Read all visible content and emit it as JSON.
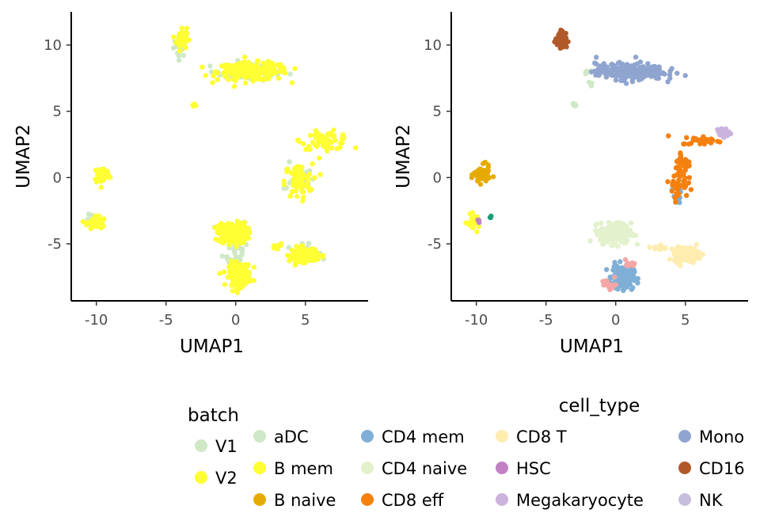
{
  "chart_data": [
    {
      "type": "scatter",
      "xlabel": "UMAP1",
      "ylabel": "UMAP2",
      "xlim": [
        -11.8,
        9.5
      ],
      "ylim": [
        -9.3,
        12.5
      ],
      "xticks": [
        -10,
        -5,
        0,
        5
      ],
      "yticks": [
        -5,
        0,
        5,
        10
      ],
      "grid": false,
      "legend": {
        "title": "batch",
        "position": "bottom",
        "entries": [
          {
            "label": "V1",
            "color": "#cfe8c6"
          },
          {
            "label": "V2",
            "color": "#ffff33"
          }
        ]
      },
      "series": [
        {
          "name": "V1",
          "color": "#cfe8c6",
          "clusters": [
            {
              "cx": -4.0,
              "cy": 10.0,
              "sx": 0.4,
              "sy": 0.8,
              "n": 25
            },
            {
              "cx": 1.0,
              "cy": 8.0,
              "sx": 2.5,
              "sy": 0.6,
              "n": 60
            },
            {
              "cx": -10.3,
              "cy": -3.4,
              "sx": 0.6,
              "sy": 0.6,
              "n": 12
            },
            {
              "cx": 4.5,
              "cy": 0.0,
              "sx": 1.0,
              "sy": 1.0,
              "n": 25
            },
            {
              "cx": 0.0,
              "cy": -5.0,
              "sx": 0.8,
              "sy": 2.0,
              "n": 60
            },
            {
              "cx": 4.8,
              "cy": -5.6,
              "sx": 1.0,
              "sy": 0.5,
              "n": 25
            }
          ]
        },
        {
          "name": "V2",
          "color": "#ffff33",
          "clusters": [
            {
              "cx": -3.9,
              "cy": 10.5,
              "sx": 0.35,
              "sy": 0.8,
              "n": 45
            },
            {
              "cx": 1.2,
              "cy": 8.0,
              "sx": 2.3,
              "sy": 0.6,
              "n": 220
            },
            {
              "cx": -3.0,
              "cy": 5.5,
              "sx": 0.15,
              "sy": 0.15,
              "n": 6
            },
            {
              "cx": 6.5,
              "cy": 2.8,
              "sx": 1.6,
              "sy": 0.6,
              "n": 60
            },
            {
              "cx": 4.5,
              "cy": -0.3,
              "sx": 0.9,
              "sy": 1.2,
              "n": 70
            },
            {
              "cx": -9.6,
              "cy": 0.2,
              "sx": 0.5,
              "sy": 0.6,
              "n": 60
            },
            {
              "cx": -10.0,
              "cy": -3.4,
              "sx": 0.6,
              "sy": 0.5,
              "n": 35
            },
            {
              "cx": -0.2,
              "cy": -4.2,
              "sx": 0.9,
              "sy": 0.7,
              "n": 230
            },
            {
              "cx": 0.3,
              "cy": -7.3,
              "sx": 0.7,
              "sy": 0.8,
              "n": 160
            },
            {
              "cx": 4.9,
              "cy": -5.8,
              "sx": 0.9,
              "sy": 0.5,
              "n": 130
            },
            {
              "cx": 3.0,
              "cy": -5.2,
              "sx": 0.4,
              "sy": 0.15,
              "n": 12
            }
          ]
        }
      ]
    },
    {
      "type": "scatter",
      "xlabel": "UMAP1",
      "ylabel": "UMAP2",
      "xlim": [
        -11.8,
        9.5
      ],
      "ylim": [
        -9.3,
        12.5
      ],
      "xticks": [
        -10,
        -5,
        0,
        5
      ],
      "yticks": [
        -5,
        0,
        5,
        10
      ],
      "grid": false,
      "legend": {
        "title": "cell_type",
        "position": "bottom",
        "entries": [
          {
            "label": "aDC",
            "color": "#cfe8c6"
          },
          {
            "label": "B mem",
            "color": "#ffff33"
          },
          {
            "label": "B naive",
            "color": "#e6ab02"
          },
          {
            "label": "CD4 mem",
            "color": "#7fafd6"
          },
          {
            "label": "CD4 naive",
            "color": "#e3f1cc"
          },
          {
            "label": "CD8 eff",
            "color": "#f5800e"
          },
          {
            "label": "CD8 T",
            "color": "#feedaf"
          },
          {
            "label": "HSC",
            "color": "#c181c2"
          },
          {
            "label": "Megakaryocyte",
            "color": "#cab3dc"
          },
          {
            "label": "Mono",
            "color": "#8fa4cf"
          },
          {
            "label": "CD16",
            "color": "#b15928"
          },
          {
            "label": "NK",
            "color": "#c7bddd"
          }
        ]
      },
      "series": [
        {
          "name": "aDC",
          "color": "#cfe8c6",
          "clusters": [
            {
              "cx": -3.0,
              "cy": 5.5,
              "sx": 0.15,
              "sy": 0.15,
              "n": 6
            },
            {
              "cx": -2.0,
              "cy": 8.0,
              "sx": 0.3,
              "sy": 0.3,
              "n": 6
            },
            {
              "cx": -1.8,
              "cy": 7.2,
              "sx": 0.2,
              "sy": 0.2,
              "n": 3
            }
          ]
        },
        {
          "name": "B mem",
          "color": "#ffff33",
          "clusters": [
            {
              "cx": -10.2,
              "cy": -3.4,
              "sx": 0.4,
              "sy": 0.5,
              "n": 25
            }
          ]
        },
        {
          "name": "B naive",
          "color": "#e6ab02",
          "clusters": [
            {
              "cx": -9.6,
              "cy": 0.2,
              "sx": 0.5,
              "sy": 0.6,
              "n": 70
            }
          ]
        },
        {
          "name": "CD4 mem",
          "color": "#7fafd6",
          "clusters": [
            {
              "cx": 0.5,
              "cy": -7.5,
              "sx": 0.7,
              "sy": 0.8,
              "n": 180
            },
            {
              "cx": 4.3,
              "cy": -1.5,
              "sx": 0.4,
              "sy": 0.8,
              "n": 10
            }
          ]
        },
        {
          "name": "CD4 naive",
          "color": "#e3f1cc",
          "clusters": [
            {
              "cx": 0.0,
              "cy": -4.2,
              "sx": 1.0,
              "sy": 0.7,
              "n": 260
            }
          ]
        },
        {
          "name": "CD8 eff",
          "color": "#f5800e",
          "clusters": [
            {
              "cx": 6.2,
              "cy": 2.8,
              "sx": 1.3,
              "sy": 0.3,
              "n": 30
            },
            {
              "cx": 4.8,
              "cy": 1.0,
              "sx": 0.5,
              "sy": 1.0,
              "n": 30
            },
            {
              "cx": 4.5,
              "cy": -0.5,
              "sx": 0.6,
              "sy": 0.9,
              "n": 40
            }
          ]
        },
        {
          "name": "CD8 T",
          "color": "#feedaf",
          "clusters": [
            {
              "cx": 5.1,
              "cy": -5.8,
              "sx": 0.8,
              "sy": 0.5,
              "n": 150
            },
            {
              "cx": 3.1,
              "cy": -5.3,
              "sx": 0.5,
              "sy": 0.2,
              "n": 15
            }
          ]
        },
        {
          "name": "HSC",
          "color": "#c181c2",
          "clusters": [
            {
              "cx": -9.8,
              "cy": -3.3,
              "sx": 0.15,
              "sy": 0.15,
              "n": 3
            }
          ]
        },
        {
          "name": "Megakaryocyte",
          "color": "#cab3dc",
          "clusters": [
            {
              "cx": 7.7,
              "cy": 3.4,
              "sx": 0.4,
              "sy": 0.3,
              "n": 40
            }
          ]
        },
        {
          "name": "Mono",
          "color": "#8fa4cf",
          "clusters": [
            {
              "cx": 1.0,
              "cy": 8.0,
              "sx": 2.2,
              "sy": 0.55,
              "n": 260
            }
          ]
        },
        {
          "name": "CD16",
          "color": "#b15928",
          "clusters": [
            {
              "cx": -3.9,
              "cy": 10.4,
              "sx": 0.4,
              "sy": 0.6,
              "n": 55
            }
          ]
        },
        {
          "name": "NK",
          "color": "#c7bddd",
          "clusters": []
        },
        {
          "color": "#f4a6a6",
          "clusters": [
            {
              "cx": -0.3,
              "cy": -8.0,
              "sx": 0.6,
              "sy": 0.4,
              "n": 12
            },
            {
              "cx": 1.0,
              "cy": -6.6,
              "sx": 0.4,
              "sy": 0.5,
              "n": 8
            }
          ]
        },
        {
          "color": "#1b9e77",
          "clusters": [
            {
              "cx": -9.0,
              "cy": -3.0,
              "sx": 0.1,
              "sy": 0.1,
              "n": 3
            }
          ]
        }
      ]
    }
  ]
}
